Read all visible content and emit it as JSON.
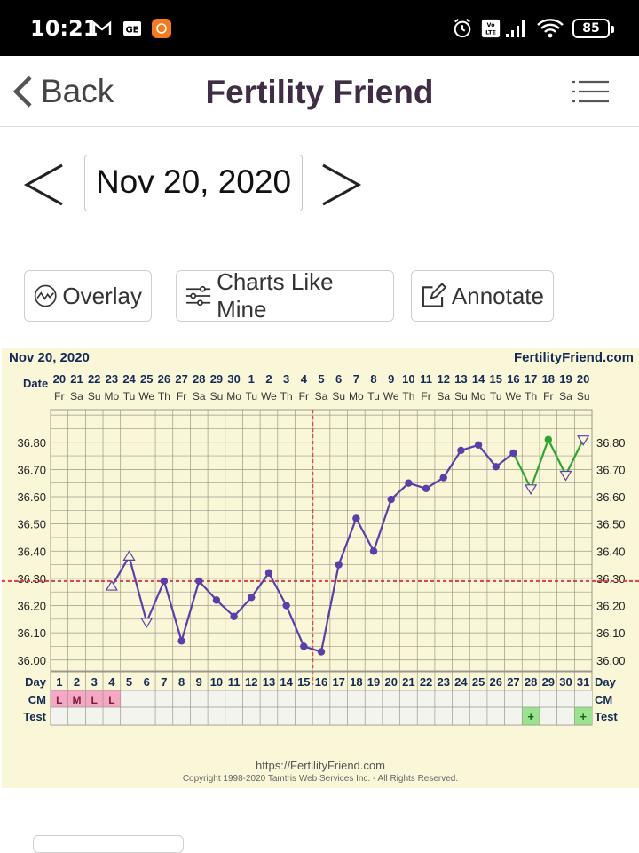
{
  "status_bar": {
    "time": "10:21",
    "battery": "85"
  },
  "header": {
    "back_label": "Back",
    "title": "Fertility Friend"
  },
  "date_nav": {
    "current_date": "Nov 20, 2020"
  },
  "toolbar": {
    "overlay_label": "Overlay",
    "charts_like_mine_label": "Charts Like Mine",
    "annotate_label": "Annotate"
  },
  "chart": {
    "date_label": "Nov 20, 2020",
    "brand": "FertilityFriend.com",
    "url": "https://FertilityFriend.com",
    "copyright": "Copyright 1998-2020 Tamtris Web Services Inc. - All Rights Reserved.",
    "row_labels": {
      "date": "Date",
      "day": "Day",
      "cm": "CM",
      "test": "Test"
    }
  },
  "chart_data": {
    "type": "line",
    "dates": [
      "20",
      "21",
      "22",
      "23",
      "24",
      "25",
      "26",
      "27",
      "28",
      "29",
      "30",
      "1",
      "2",
      "3",
      "4",
      "5",
      "6",
      "7",
      "8",
      "9",
      "10",
      "11",
      "12",
      "13",
      "14",
      "15",
      "16",
      "17",
      "18",
      "19",
      "20"
    ],
    "weekdays": [
      "Fr",
      "Sa",
      "Su",
      "Mo",
      "Tu",
      "We",
      "Th",
      "Fr",
      "Sa",
      "Su",
      "Mo",
      "Tu",
      "We",
      "Th",
      "Fr",
      "Sa",
      "Su",
      "Mo",
      "Tu",
      "We",
      "Th",
      "Fr",
      "Sa",
      "Su",
      "Mo",
      "Tu",
      "We",
      "Th",
      "Fr",
      "Sa",
      "Su"
    ],
    "cycle_days": [
      1,
      2,
      3,
      4,
      5,
      6,
      7,
      8,
      9,
      10,
      11,
      12,
      13,
      14,
      15,
      16,
      17,
      18,
      19,
      20,
      21,
      22,
      23,
      24,
      25,
      26,
      27,
      28,
      29,
      30,
      31
    ],
    "temperatures": [
      null,
      null,
      null,
      36.27,
      36.38,
      36.14,
      36.29,
      36.07,
      36.29,
      36.22,
      36.16,
      36.23,
      36.32,
      36.2,
      36.05,
      36.03,
      36.35,
      36.52,
      36.4,
      36.59,
      36.65,
      36.63,
      36.67,
      36.77,
      36.79,
      36.71,
      36.76,
      36.63,
      36.81,
      36.68,
      36.81
    ],
    "open_marker_days": [
      4,
      5,
      6,
      28,
      30,
      31
    ],
    "green_segment_from_day": 27,
    "y_ticks": [
      "36.80",
      "36.70",
      "36.60",
      "36.50",
      "36.40",
      "36.30",
      "36.20",
      "36.10",
      "36.00"
    ],
    "ylim": [
      35.96,
      36.92
    ],
    "coverline": 36.29,
    "ovulation_day": 16,
    "cm": [
      "L",
      "M",
      "L",
      "L"
    ],
    "test_positive_days": [
      28,
      31
    ],
    "colors": {
      "line": "#5b3ea8",
      "green": "#2ea52e",
      "coverline": "#d94a4a",
      "cm_fill": "#f4a8c4",
      "test_fill": "#9be38f",
      "grid": "#9a9a88",
      "panel": "#f9f7d8"
    }
  }
}
